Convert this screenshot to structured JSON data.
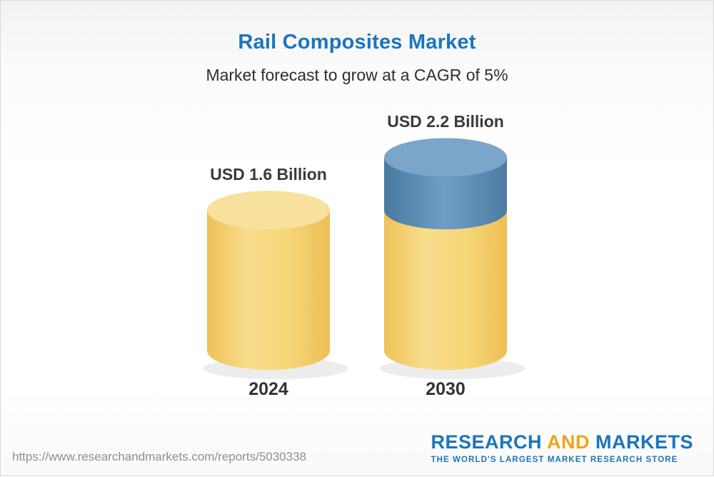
{
  "page": {
    "title": "Rail Composites Market",
    "subtitle": "Market forecast to grow at a CAGR of 5%"
  },
  "chart_data": {
    "type": "bar",
    "variant": "3d-cylinder",
    "title": "Rail Composites Market",
    "subtitle": "Market forecast to grow at a CAGR of 5%",
    "unit": "USD Billion",
    "cagr": "5%",
    "categories": [
      "2024",
      "2030"
    ],
    "values": [
      1.6,
      2.2
    ],
    "value_labels": [
      "USD 1.6 Billion",
      "USD 2.2 Billion"
    ],
    "series": [
      {
        "name": "base",
        "color_key": "yellow",
        "values": [
          1.6,
          1.6
        ]
      },
      {
        "name": "growth",
        "color_key": "blue",
        "values": [
          0,
          0.6
        ]
      }
    ],
    "colors": {
      "yellow": {
        "body": [
          "#eec158",
          "#f9dd8c",
          "#f6d678",
          "#edbf55"
        ],
        "cap": "#f8e19c"
      },
      "blue": {
        "body": [
          "#49799f",
          "#6f9ec6",
          "#4d7ba2"
        ],
        "cap": "#7ba6ca"
      }
    },
    "legend": "off",
    "grid": "off",
    "axes": "hidden"
  },
  "footer": {
    "url": "https://www.researchandmarkets.com/reports/5030338",
    "logo": {
      "research": "RESEARCH",
      "and": "AND",
      "markets": "MARKETS",
      "tagline": "THE WORLD'S LARGEST MARKET RESEARCH STORE"
    }
  },
  "theme": {
    "title_color": "#1b75bc",
    "logo_blue": "#1b75bb",
    "logo_gold": "#f0a41d",
    "text_dark": "#3a3a3a",
    "url_gray": "#8f8f8f"
  }
}
